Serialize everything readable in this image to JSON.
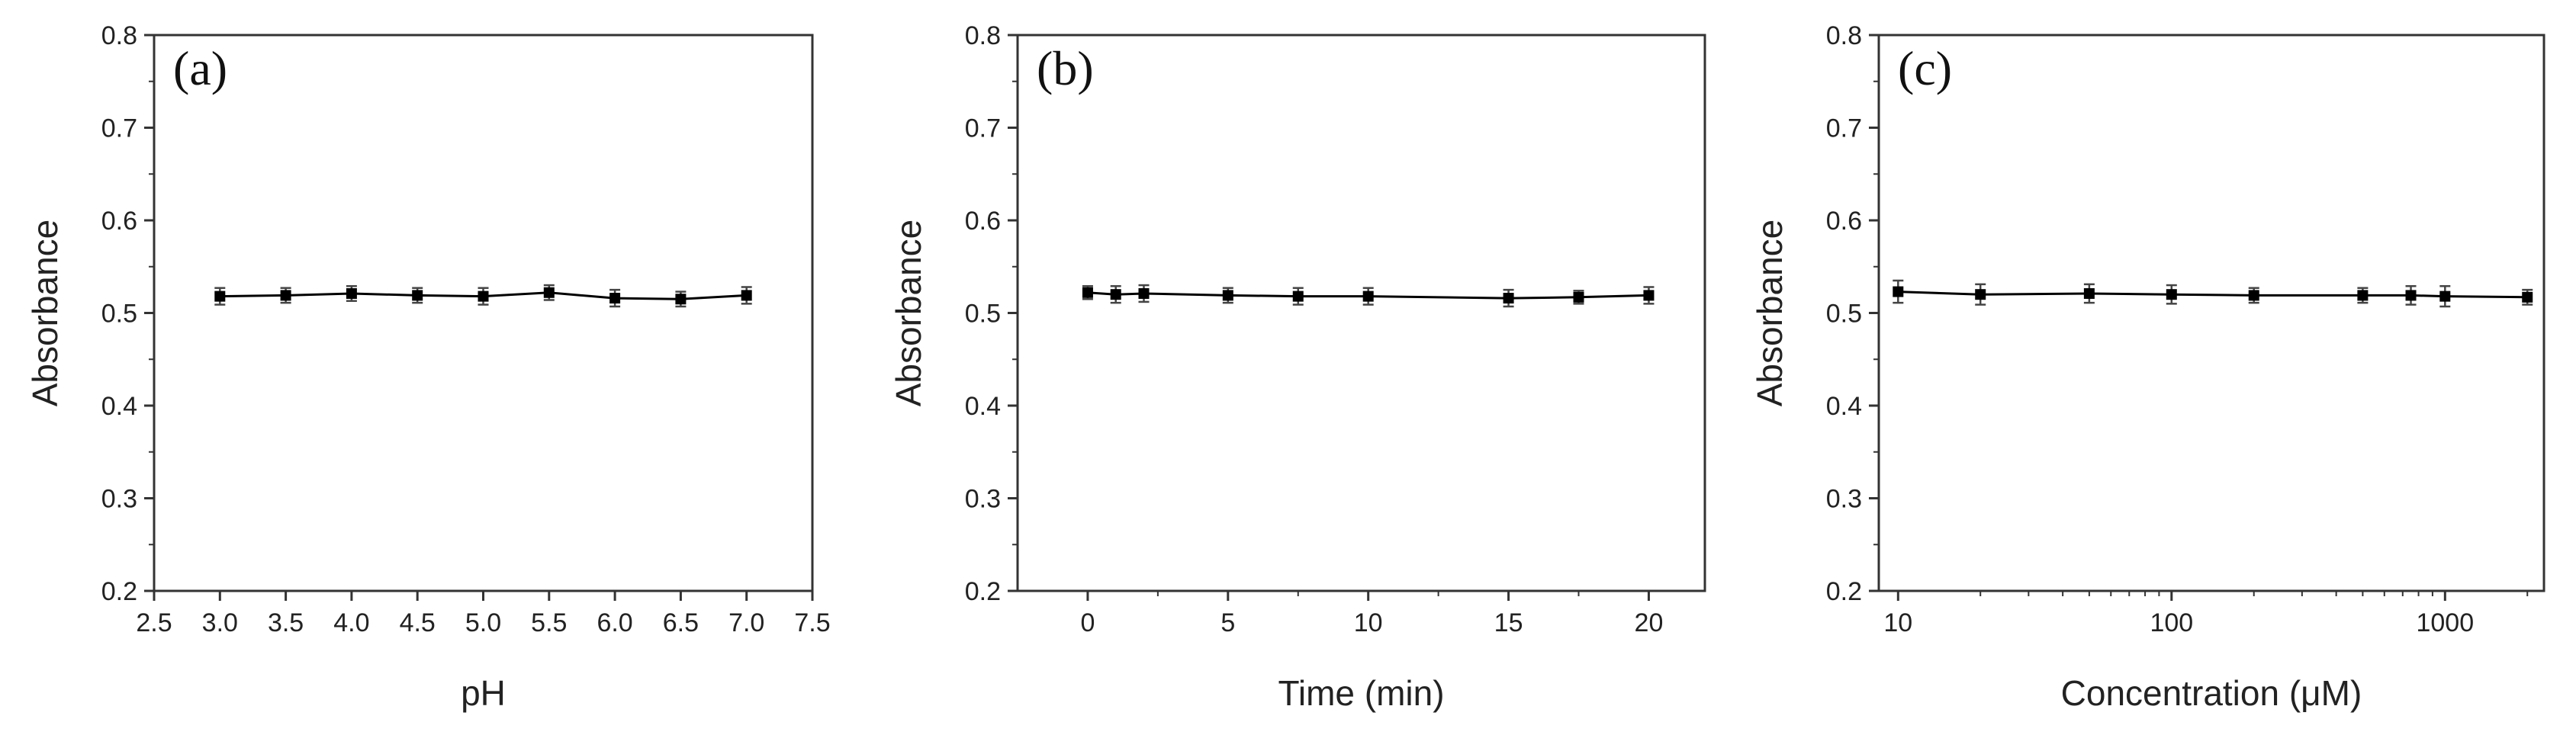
{
  "chart_data": [
    {
      "type": "line",
      "panel_label": "(a)",
      "xlabel": "pH",
      "ylabel": "Absorbance",
      "xscale": "linear",
      "xlim": [
        2.5,
        7.5
      ],
      "ylim": [
        0.2,
        0.8
      ],
      "xticks": [
        "2.5",
        "3.0",
        "3.5",
        "4.0",
        "4.5",
        "5.0",
        "5.5",
        "6.0",
        "6.5",
        "7.0",
        "7.5"
      ],
      "yticks": [
        "0.2",
        "0.3",
        "0.4",
        "0.5",
        "0.6",
        "0.7",
        "0.8"
      ],
      "grid": false,
      "marker": "square",
      "color": "#000000",
      "series": [
        {
          "x": [
            3.0,
            3.5,
            4.0,
            4.5,
            5.0,
            5.5,
            6.0,
            6.5,
            7.0
          ],
          "y": [
            0.518,
            0.519,
            0.521,
            0.519,
            0.518,
            0.522,
            0.516,
            0.515,
            0.519
          ],
          "err": [
            0.009,
            0.008,
            0.008,
            0.008,
            0.009,
            0.008,
            0.009,
            0.008,
            0.009
          ]
        }
      ]
    },
    {
      "type": "line",
      "panel_label": "(b)",
      "xlabel": "Time (min)",
      "ylabel": "Absorbance",
      "xscale": "linear",
      "xlim": [
        -2.5,
        22
      ],
      "ylim": [
        0.2,
        0.8
      ],
      "xticks": [
        "0",
        "5",
        "10",
        "15",
        "20"
      ],
      "yticks": [
        "0.2",
        "0.3",
        "0.4",
        "0.5",
        "0.6",
        "0.7",
        "0.8"
      ],
      "grid": false,
      "marker": "square",
      "color": "#000000",
      "series": [
        {
          "x": [
            0,
            1,
            2,
            5,
            7.5,
            10,
            15,
            17.5,
            20
          ],
          "y": [
            0.522,
            0.52,
            0.521,
            0.519,
            0.518,
            0.518,
            0.516,
            0.517,
            0.519
          ],
          "err": [
            0.007,
            0.009,
            0.009,
            0.008,
            0.009,
            0.009,
            0.009,
            0.007,
            0.009
          ]
        }
      ]
    },
    {
      "type": "line",
      "panel_label": "(c)",
      "xlabel": "Concentration (μM)",
      "ylabel": "Absorbance",
      "xscale": "log",
      "xlim": [
        8.5,
        2300
      ],
      "ylim": [
        0.2,
        0.8
      ],
      "xticks": [
        "10",
        "100",
        "1000"
      ],
      "yticks": [
        "0.2",
        "0.3",
        "0.4",
        "0.5",
        "0.6",
        "0.7",
        "0.8"
      ],
      "grid": false,
      "marker": "square",
      "color": "#000000",
      "series": [
        {
          "x": [
            10,
            20,
            50,
            100,
            200,
            500,
            750,
            1000,
            2000
          ],
          "y": [
            0.523,
            0.52,
            0.521,
            0.52,
            0.519,
            0.519,
            0.519,
            0.518,
            0.517
          ],
          "err": [
            0.012,
            0.011,
            0.01,
            0.01,
            0.008,
            0.008,
            0.01,
            0.011,
            0.008
          ]
        }
      ]
    }
  ]
}
